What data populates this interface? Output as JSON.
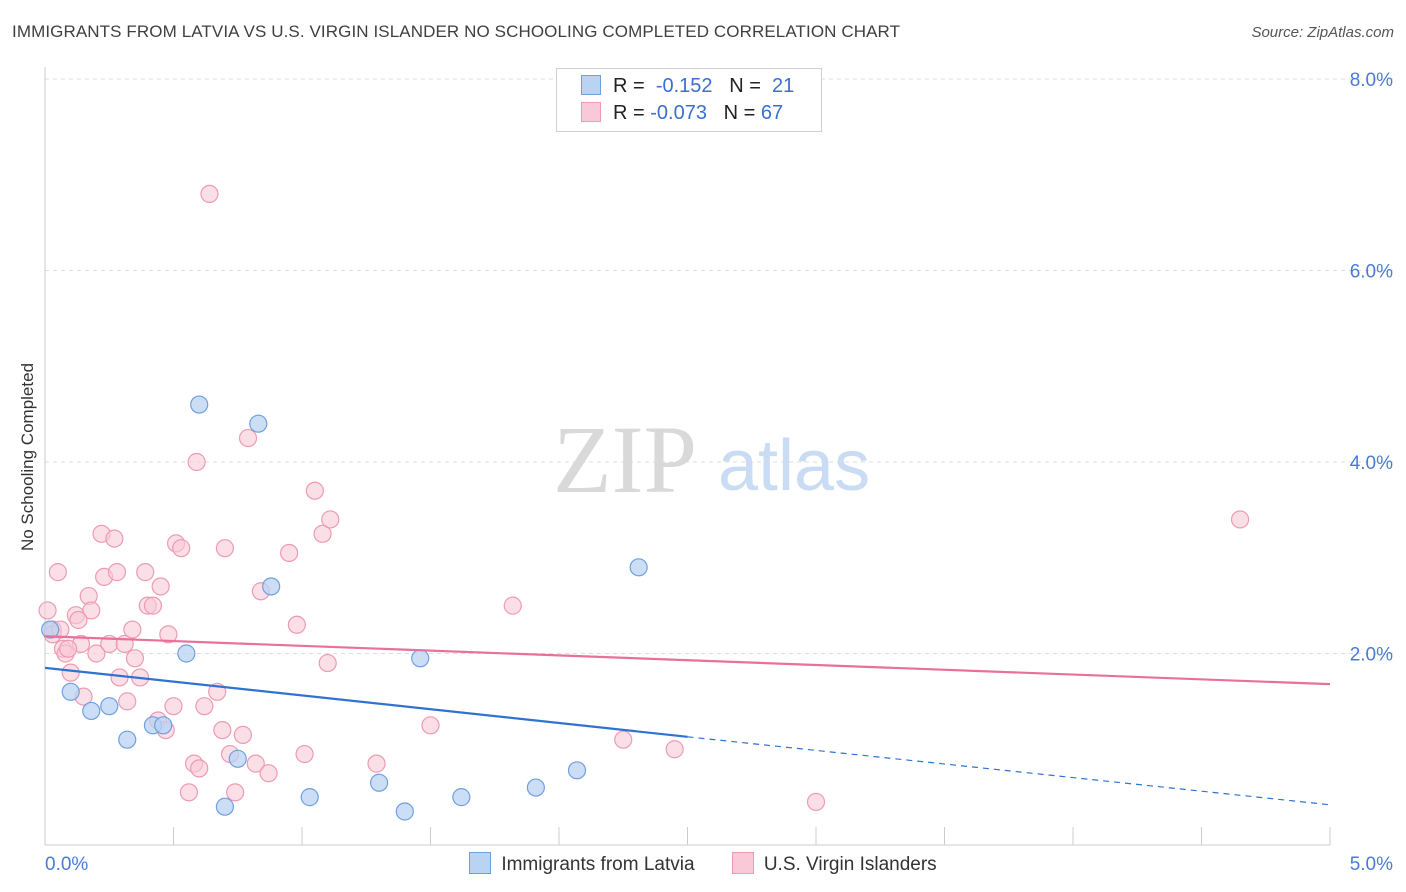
{
  "title": "IMMIGRANTS FROM LATVIA VS U.S. VIRGIN ISLANDER NO SCHOOLING COMPLETED CORRELATION CHART",
  "source": "Source: ZipAtlas.com",
  "watermark": {
    "zip": "ZIP",
    "atlas": "atlas"
  },
  "legend": {
    "rows": [
      {
        "r_label": "R =",
        "r_value": "-0.152",
        "n_label": "N =",
        "n_value": "21"
      },
      {
        "r_label": "R =",
        "r_value": "-0.073",
        "n_label": "N =",
        "n_value": "67"
      }
    ]
  },
  "colors": {
    "blue_fill": "#b9d3f3",
    "blue_stroke": "#6fa0de",
    "blue_line": "#2f72d0",
    "pink_fill": "#f9c9d7",
    "pink_stroke": "#ee9ab4",
    "pink_line": "#e8709a",
    "grid": "#dddddd",
    "tick_text": "#4a7bd6"
  },
  "chart_data": {
    "type": "scatter",
    "title": "IMMIGRANTS FROM LATVIA VS U.S. VIRGIN ISLANDER NO SCHOOLING COMPLETED CORRELATION CHART",
    "xlabel": "",
    "ylabel": "No Schooling Completed",
    "xlim": [
      0,
      5
    ],
    "ylim": [
      0,
      8
    ],
    "x_tick_labels": [
      {
        "value": 0,
        "label": "0.0%"
      },
      {
        "value": 5,
        "label": "5.0%"
      }
    ],
    "y_ticks": [
      {
        "value": 2,
        "label": "2.0%"
      },
      {
        "value": 4,
        "label": "4.0%"
      },
      {
        "value": 6,
        "label": "6.0%"
      },
      {
        "value": 8,
        "label": "8.0%"
      }
    ],
    "series": [
      {
        "name": "Immigrants from Latvia",
        "r": -0.152,
        "n": 21,
        "points": [
          [
            0.02,
            2.25
          ],
          [
            0.1,
            1.6
          ],
          [
            0.18,
            1.4
          ],
          [
            0.25,
            1.45
          ],
          [
            0.32,
            1.1
          ],
          [
            0.42,
            1.25
          ],
          [
            0.46,
            1.25
          ],
          [
            0.55,
            2.0
          ],
          [
            0.6,
            4.6
          ],
          [
            0.7,
            0.4
          ],
          [
            0.75,
            0.9
          ],
          [
            0.83,
            4.4
          ],
          [
            0.88,
            2.7
          ],
          [
            1.03,
            0.5
          ],
          [
            1.3,
            0.65
          ],
          [
            1.4,
            0.35
          ],
          [
            1.46,
            1.95
          ],
          [
            1.62,
            0.5
          ],
          [
            1.91,
            0.6
          ],
          [
            2.07,
            0.78
          ],
          [
            2.31,
            2.9
          ]
        ],
        "trend": {
          "x0": 0,
          "y0": 1.85,
          "x1": 2.5,
          "y1": 1.13,
          "dashed_to_x": 5.0,
          "dashed_to_y": 0.42
        }
      },
      {
        "name": "U.S. Virgin Islanders",
        "r": -0.073,
        "n": 67,
        "points": [
          [
            0.01,
            2.45
          ],
          [
            0.03,
            2.25
          ],
          [
            0.05,
            2.85
          ],
          [
            0.07,
            2.05
          ],
          [
            0.08,
            2.0
          ],
          [
            0.1,
            1.8
          ],
          [
            0.12,
            2.4
          ],
          [
            0.14,
            2.1
          ],
          [
            0.15,
            1.55
          ],
          [
            0.17,
            2.6
          ],
          [
            0.18,
            2.45
          ],
          [
            0.2,
            2.0
          ],
          [
            0.22,
            3.25
          ],
          [
            0.23,
            2.8
          ],
          [
            0.25,
            2.1
          ],
          [
            0.27,
            3.2
          ],
          [
            0.28,
            2.85
          ],
          [
            0.29,
            1.75
          ],
          [
            0.31,
            2.1
          ],
          [
            0.32,
            1.5
          ],
          [
            0.34,
            2.25
          ],
          [
            0.35,
            1.95
          ],
          [
            0.37,
            1.75
          ],
          [
            0.39,
            2.85
          ],
          [
            0.4,
            2.5
          ],
          [
            0.42,
            2.5
          ],
          [
            0.44,
            1.3
          ],
          [
            0.45,
            2.7
          ],
          [
            0.47,
            1.2
          ],
          [
            0.48,
            2.2
          ],
          [
            0.5,
            1.45
          ],
          [
            0.51,
            3.15
          ],
          [
            0.53,
            3.1
          ],
          [
            0.56,
            0.55
          ],
          [
            0.58,
            0.85
          ],
          [
            0.59,
            4.0
          ],
          [
            0.6,
            0.8
          ],
          [
            0.62,
            1.45
          ],
          [
            0.64,
            6.8
          ],
          [
            0.67,
            1.6
          ],
          [
            0.69,
            1.2
          ],
          [
            0.7,
            3.1
          ],
          [
            0.72,
            0.95
          ],
          [
            0.74,
            0.55
          ],
          [
            0.77,
            1.15
          ],
          [
            0.79,
            4.25
          ],
          [
            0.82,
            0.85
          ],
          [
            0.84,
            2.65
          ],
          [
            0.87,
            0.75
          ],
          [
            0.95,
            3.05
          ],
          [
            0.98,
            2.3
          ],
          [
            1.01,
            0.95
          ],
          [
            1.05,
            3.7
          ],
          [
            1.08,
            3.25
          ],
          [
            1.1,
            1.9
          ],
          [
            1.11,
            3.4
          ],
          [
            1.29,
            0.85
          ],
          [
            1.5,
            1.25
          ],
          [
            1.82,
            2.5
          ],
          [
            2.25,
            1.1
          ],
          [
            2.45,
            1.0
          ],
          [
            3.0,
            0.45
          ],
          [
            4.65,
            3.4
          ],
          [
            0.03,
            2.2
          ],
          [
            0.06,
            2.25
          ],
          [
            0.09,
            2.05
          ],
          [
            0.13,
            2.35
          ]
        ],
        "trend": {
          "x0": 0,
          "y0": 2.18,
          "x1": 5.0,
          "y1": 1.68
        }
      }
    ]
  }
}
